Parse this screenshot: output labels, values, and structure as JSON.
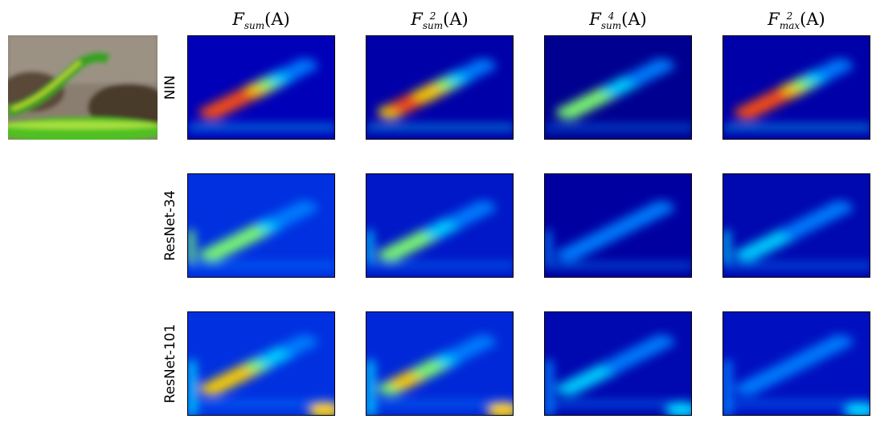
{
  "columns": [
    {
      "base": "F",
      "sub": "sum",
      "sup": "",
      "arg": "(A)"
    },
    {
      "base": "F",
      "sub": "sum",
      "sup": "2",
      "arg": "(A)"
    },
    {
      "base": "F",
      "sub": "sum",
      "sup": "4",
      "arg": "(A)"
    },
    {
      "base": "F",
      "sub": "max",
      "sup": "2",
      "arg": "(A)"
    }
  ],
  "rows": [
    {
      "label": "NIN"
    },
    {
      "label": "ResNet-34"
    },
    {
      "label": "ResNet-101"
    }
  ],
  "colors": {
    "background": "#ffffff",
    "heat_low": "#00008f",
    "heat_mid": "#00b0ff",
    "heat_high": "#ff3000"
  }
}
